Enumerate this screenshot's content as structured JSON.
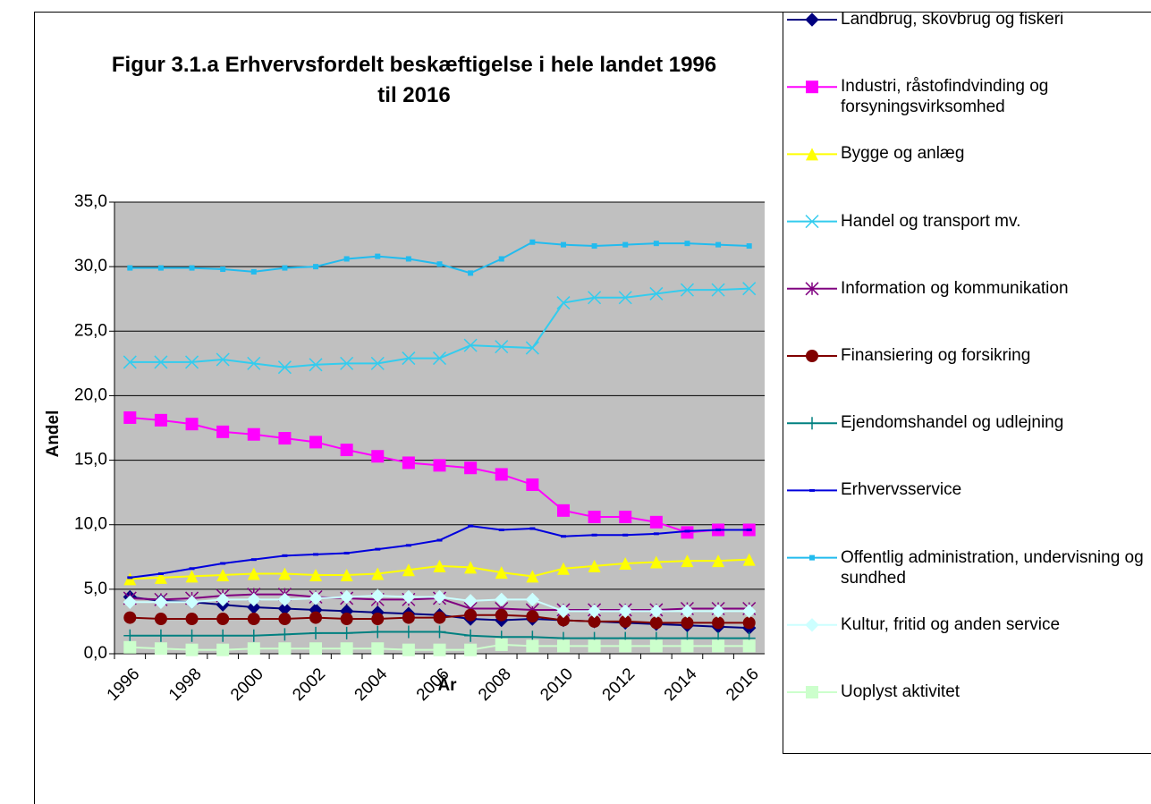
{
  "chart_data": {
    "type": "line",
    "title": "Figur 3.1.a Erhvervsfordelt beskæftigelse i hele landet 1996 til 2016",
    "x_label": "År",
    "y_label": "Andel",
    "categories": [
      "1996",
      null,
      "1998",
      null,
      "2000",
      null,
      "2002",
      null,
      "2004",
      null,
      "2006",
      null,
      "2008",
      null,
      "2010",
      null,
      "2012",
      null,
      "2014",
      null,
      "2016"
    ],
    "ylim": [
      0,
      35
    ],
    "yticks": [
      {
        "value": 0,
        "label": "0,0"
      },
      {
        "value": 5,
        "label": "5,0"
      },
      {
        "value": 10,
        "label": "10,0"
      },
      {
        "value": 15,
        "label": "15,0"
      },
      {
        "value": 20,
        "label": "20,0"
      },
      {
        "value": 25,
        "label": "25,0"
      },
      {
        "value": 30,
        "label": "30,0"
      },
      {
        "value": 35,
        "label": "35,0"
      }
    ],
    "grid": true,
    "background": "#c0c0c0",
    "legend": "right",
    "series": [
      {
        "name": "Landbrug, skovbrug og fiskeri",
        "color": "#000080",
        "marker": "diamond",
        "values": [
          4.4,
          4.1,
          4.0,
          3.8,
          3.6,
          3.5,
          3.4,
          3.3,
          3.2,
          3.1,
          3.0,
          2.7,
          2.6,
          2.7,
          2.6,
          2.5,
          2.4,
          2.3,
          2.2,
          2.1,
          2.0
        ]
      },
      {
        "name": "Industri, råstofindvinding og forsyningsvirksomhed",
        "color": "#ff00ff",
        "marker": "square",
        "values": [
          18.3,
          18.1,
          17.8,
          17.2,
          17.0,
          16.7,
          16.4,
          15.8,
          15.3,
          14.8,
          14.6,
          14.4,
          13.9,
          13.1,
          11.1,
          10.6,
          10.6,
          10.2,
          9.4,
          9.6,
          9.6
        ]
      },
      {
        "name": "Bygge og anlæg",
        "color": "#ffff00",
        "marker": "triangle",
        "values": [
          5.8,
          5.9,
          6.0,
          6.1,
          6.2,
          6.2,
          6.1,
          6.1,
          6.2,
          6.5,
          6.8,
          6.7,
          6.3,
          6.0,
          6.6,
          6.8,
          7.0,
          7.1,
          7.2,
          7.2,
          7.3
        ]
      },
      {
        "name": "Handel og transport mv.",
        "color": "#33ccee",
        "marker": "x",
        "values": [
          22.6,
          22.6,
          22.6,
          22.8,
          22.5,
          22.2,
          22.4,
          22.5,
          22.5,
          22.9,
          22.9,
          23.9,
          23.8,
          23.7,
          27.2,
          27.6,
          27.6,
          27.9,
          28.2,
          28.2,
          28.3
        ]
      },
      {
        "name": "Information og kommunikation",
        "color": "#800080",
        "marker": "star",
        "values": [
          4.3,
          4.2,
          4.3,
          4.5,
          4.6,
          4.6,
          4.4,
          4.3,
          4.2,
          4.2,
          4.3,
          3.5,
          3.5,
          3.4,
          3.4,
          3.4,
          3.4,
          3.4,
          3.5,
          3.5,
          3.5
        ]
      },
      {
        "name": "Finansiering og forsikring",
        "color": "#800000",
        "marker": "circle",
        "values": [
          2.8,
          2.7,
          2.7,
          2.7,
          2.7,
          2.7,
          2.8,
          2.7,
          2.7,
          2.8,
          2.8,
          3.0,
          3.0,
          2.9,
          2.6,
          2.5,
          2.5,
          2.4,
          2.4,
          2.4,
          2.4
        ]
      },
      {
        "name": "Ejendomshandel og udlejning",
        "color": "#008080",
        "marker": "plus",
        "values": [
          1.4,
          1.4,
          1.4,
          1.4,
          1.4,
          1.5,
          1.6,
          1.6,
          1.7,
          1.7,
          1.7,
          1.4,
          1.3,
          1.3,
          1.2,
          1.2,
          1.2,
          1.2,
          1.2,
          1.2,
          1.2
        ]
      },
      {
        "name": "Erhvervsservice",
        "color": "#0000dd",
        "marker": "dash",
        "values": [
          5.9,
          6.2,
          6.6,
          7.0,
          7.3,
          7.6,
          7.7,
          7.8,
          8.1,
          8.4,
          8.8,
          9.9,
          9.6,
          9.7,
          9.1,
          9.2,
          9.2,
          9.3,
          9.5,
          9.6,
          9.6
        ]
      },
      {
        "name": "Offentlig administration, undervisning og sundhed",
        "color": "#22bbee",
        "marker": "smallsquare",
        "values": [
          29.9,
          29.9,
          29.9,
          29.8,
          29.6,
          29.9,
          30.0,
          30.6,
          30.8,
          30.6,
          30.2,
          29.5,
          30.6,
          31.9,
          31.7,
          31.6,
          31.7,
          31.8,
          31.8,
          31.7,
          31.6
        ]
      },
      {
        "name": "Kultur, fritid og anden service",
        "color": "#ccffff",
        "marker": "diamond",
        "values": [
          4.0,
          4.0,
          4.0,
          4.2,
          4.2,
          4.2,
          4.3,
          4.4,
          4.5,
          4.4,
          4.4,
          4.1,
          4.2,
          4.2,
          3.3,
          3.3,
          3.3,
          3.3,
          3.3,
          3.3,
          3.3
        ]
      },
      {
        "name": "Uoplyst aktivitet",
        "color": "#ccffcc",
        "marker": "square",
        "values": [
          0.5,
          0.4,
          0.3,
          0.3,
          0.4,
          0.4,
          0.4,
          0.4,
          0.4,
          0.3,
          0.3,
          0.3,
          0.7,
          0.6,
          0.6,
          0.6,
          0.6,
          0.6,
          0.6,
          0.6,
          0.6
        ]
      }
    ]
  }
}
